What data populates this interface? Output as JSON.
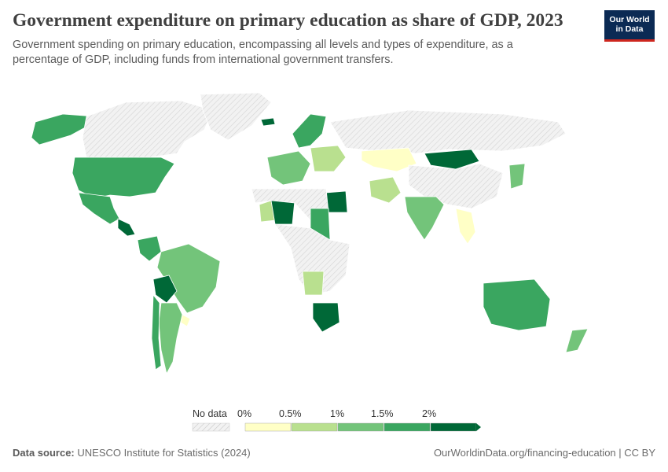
{
  "header": {
    "title": "Government expenditure on primary education as share of GDP, 2023",
    "subtitle": "Government spending on primary education, encompassing all levels and types of expenditure, as a percentage of GDP, including funds from international government transfers.",
    "logo_line1": "Our World",
    "logo_line2": "in Data"
  },
  "colors": {
    "no_data": "#e6e6e6",
    "bin_0": "#ffffc6",
    "bin_1": "#b9e08f",
    "bin_2": "#73c47a",
    "bin_3": "#3aa660",
    "bin_4": "#006837",
    "border": "#ffffff"
  },
  "legend": {
    "no_data_label": "No data",
    "ticks": [
      "0%",
      "0.5%",
      "1%",
      "1.5%",
      "2%"
    ]
  },
  "chart_data": {
    "type": "choropleth",
    "metric": "Government expenditure on primary education as share of GDP",
    "year": "2023",
    "bins": [
      "0–0.5%",
      "0.5–1%",
      "1–1.5%",
      "1.5–2%",
      ">2%"
    ],
    "countries": [
      {
        "name": "United States",
        "bin": 3
      },
      {
        "name": "Canada",
        "bin": "no data"
      },
      {
        "name": "Alaska",
        "bin": 3
      },
      {
        "name": "Mexico",
        "bin": 3
      },
      {
        "name": "Central America",
        "bin": 4
      },
      {
        "name": "Colombia",
        "bin": 3
      },
      {
        "name": "Brazil",
        "bin": 2
      },
      {
        "name": "Bolivia",
        "bin": 4
      },
      {
        "name": "Argentina",
        "bin": 2
      },
      {
        "name": "Chile",
        "bin": 3
      },
      {
        "name": "Uruguay",
        "bin": 0
      },
      {
        "name": "Greenland",
        "bin": "no data"
      },
      {
        "name": "Iceland",
        "bin": 4
      },
      {
        "name": "Scandinavia",
        "bin": 3
      },
      {
        "name": "Western Europe",
        "bin": 2
      },
      {
        "name": "Eastern Europe",
        "bin": 1
      },
      {
        "name": "Russia",
        "bin": "no data"
      },
      {
        "name": "Kazakhstan",
        "bin": 0
      },
      {
        "name": "Mongolia",
        "bin": 4
      },
      {
        "name": "China",
        "bin": "no data"
      },
      {
        "name": "Iran",
        "bin": 1
      },
      {
        "name": "India",
        "bin": 2
      },
      {
        "name": "Southeast Asia",
        "bin": 0
      },
      {
        "name": "Japan",
        "bin": 2
      },
      {
        "name": "Egypt",
        "bin": 4
      },
      {
        "name": "Mali",
        "bin": 4
      },
      {
        "name": "Mauritania",
        "bin": 1
      },
      {
        "name": "Sudan",
        "bin": 3
      },
      {
        "name": "Angola",
        "bin": 1
      },
      {
        "name": "South Africa",
        "bin": 4
      },
      {
        "name": "Australia",
        "bin": 3
      },
      {
        "name": "New Zealand",
        "bin": 2
      }
    ]
  },
  "footer": {
    "source_label": "Data source:",
    "source_text": "UNESCO Institute for Statistics (2024)",
    "url_text": "OurWorldinData.org/financing-education | CC BY"
  }
}
